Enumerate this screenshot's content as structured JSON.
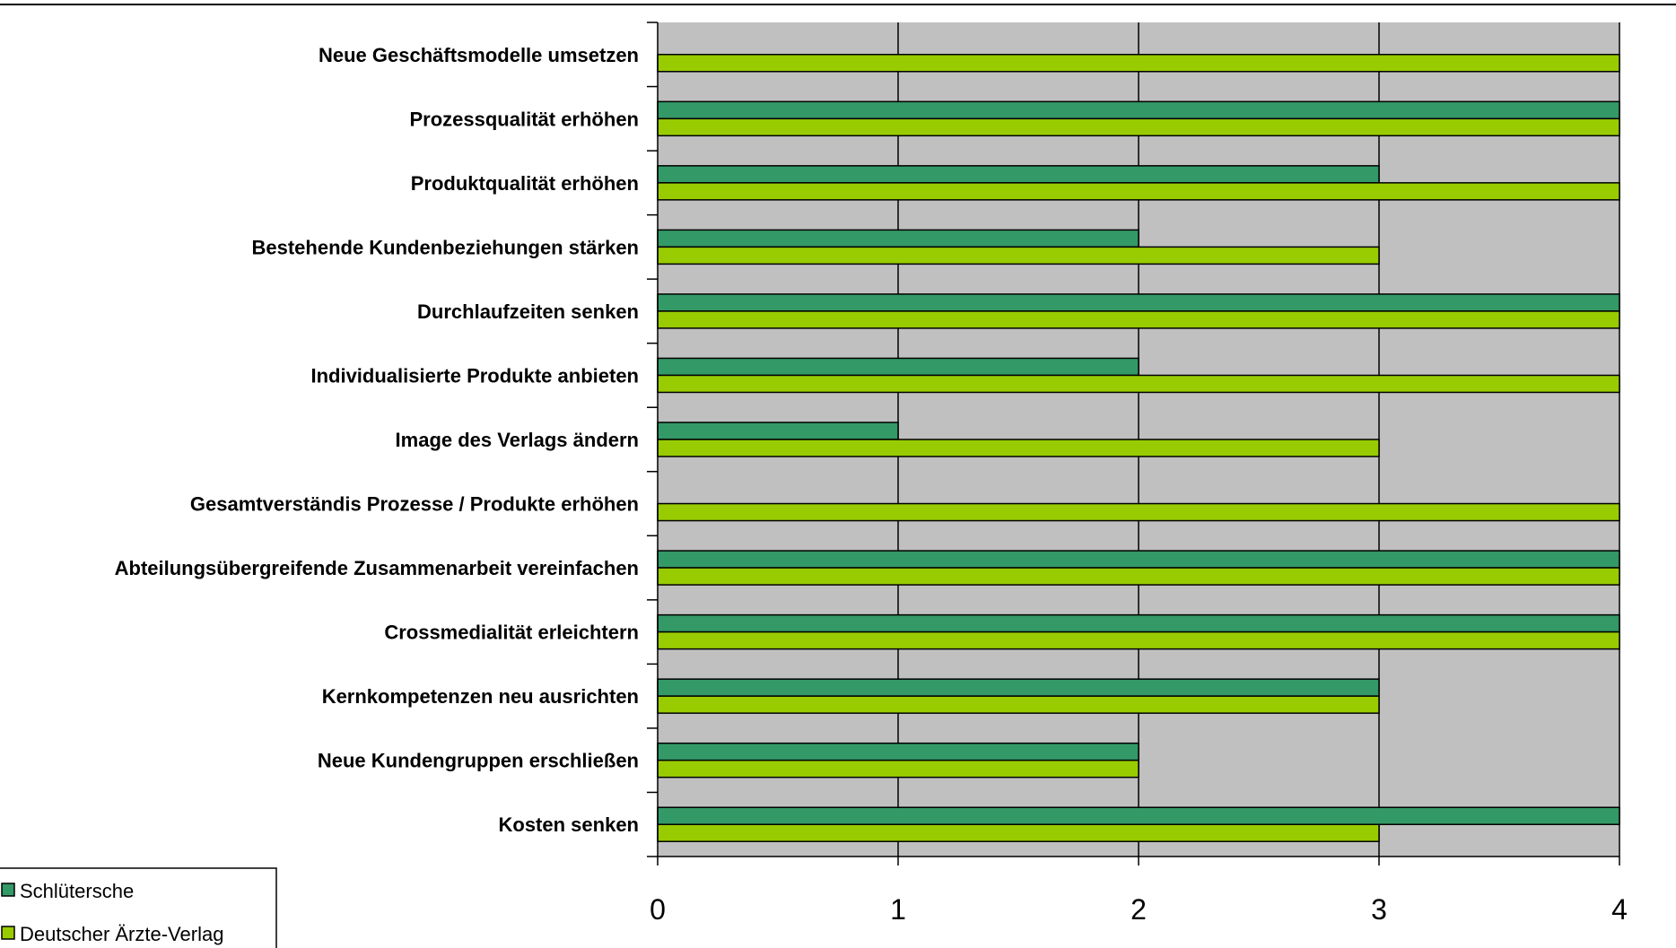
{
  "chart_data": {
    "type": "bar",
    "orientation": "horizontal",
    "categories": [
      "Neue Geschäftsmodelle umsetzen",
      "Prozessqualität erhöhen",
      "Produktqualität erhöhen",
      "Bestehende Kundenbeziehungen stärken",
      "Durchlaufzeiten senken",
      "Individualisierte Produkte anbieten",
      "Image des Verlags ändern",
      "Gesamtverständis Prozesse / Produkte erhöhen",
      "Abteilungsübergreifende Zusammenarbeit vereinfachen",
      "Crossmedialität erleichtern",
      "Kernkompetenzen neu ausrichten",
      "Neue Kundengruppen erschließen",
      "Kosten senken"
    ],
    "series": [
      {
        "name": "Schlütersche",
        "color": "#339966",
        "values": [
          0,
          4,
          3,
          2,
          4,
          2,
          1,
          0,
          4,
          4,
          3,
          2,
          4
        ]
      },
      {
        "name": "Deutscher Ärzte-Verlag",
        "color": "#99CC00",
        "values": [
          4,
          4,
          4,
          3,
          4,
          4,
          3,
          4,
          4,
          4,
          3,
          2,
          3
        ]
      }
    ],
    "x_ticks": [
      "0",
      "1",
      "2",
      "3",
      "4"
    ],
    "xlim": [
      0,
      4
    ],
    "plot_background": "#C0C0C0",
    "grid": true,
    "legend_position": "bottom-left"
  }
}
